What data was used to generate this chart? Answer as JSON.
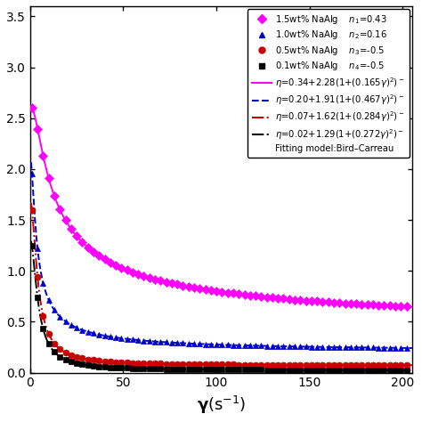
{
  "title": "",
  "xlabel_gamma": "$\\gamma$",
  "xlabel_unit": "(s$^{-1}$)",
  "xlim": [
    0,
    205
  ],
  "ylim": [
    0,
    3.6
  ],
  "x_ticks": [
    0,
    50,
    100,
    150,
    200
  ],
  "gamma_fit_start": 0.5,
  "gamma_fit_end": 205,
  "gamma_data_start": 1,
  "gamma_data_end": 205,
  "gamma_data_step": 3,
  "series": [
    {
      "label": "1.5wt% NaAlg",
      "n_label": "$n_1$=0.43",
      "eta_inf": 0.34,
      "eta_0_minus_inf": 2.28,
      "lambda": 0.165,
      "n": 0.43,
      "color": "#ff00ff",
      "marker": "D",
      "markersize": 5,
      "linestyle": "-",
      "fit_linewidth": 1.4
    },
    {
      "label": "1.0wt% NaAlg",
      "n_label": "$n_2$=0.16",
      "eta_inf": 0.2,
      "eta_0_minus_inf": 1.91,
      "lambda": 0.467,
      "n": 0.16,
      "color": "#0000cc",
      "marker": "^",
      "markersize": 5,
      "linestyle": "--",
      "fit_linewidth": 1.4
    },
    {
      "label": "0.5wt% NaAlg",
      "n_label": "$n_3$=-0.5",
      "eta_inf": 0.07,
      "eta_0_minus_inf": 1.62,
      "lambda": 0.284,
      "n": -0.5,
      "color": "#cc0000",
      "marker": "o",
      "markersize": 5,
      "linestyle": "-.",
      "fit_linewidth": 1.4
    },
    {
      "label": "0.1wt% NaAlg",
      "n_label": "$n_4$=-0.5",
      "eta_inf": 0.02,
      "eta_0_minus_inf": 1.29,
      "lambda": 0.272,
      "n": -0.5,
      "color": "#000000",
      "marker": "s",
      "markersize": 4,
      "linestyle": "-.",
      "fit_linewidth": 1.4
    }
  ],
  "legend_equations": [
    "$\\eta$=0.34+2.28(1+(0.165$\\gamma$)$^2$)$^-$",
    "$\\eta$=0.20+1.91(1+(0.467$\\gamma$)$^2$)$^-$",
    "$\\eta$=0.07+1.62(1+(0.284$\\gamma$)$^2$)$^-$",
    "$\\eta$=0.02+1.29(1+(0.272$\\gamma$)$^2$)$^-$"
  ],
  "fitting_model_text": "Fitting model:Bird–Carreau",
  "background_color": "#ffffff"
}
